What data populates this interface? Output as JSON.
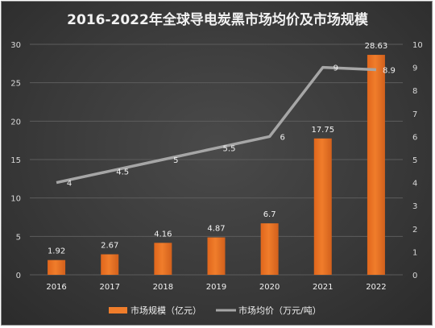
{
  "chart_data": {
    "type": "bar",
    "title": "2016-2022年全球导电炭黑市场均价及市场规模",
    "categories": [
      "2016",
      "2017",
      "2018",
      "2019",
      "2020",
      "2021",
      "2022"
    ],
    "series": [
      {
        "name": "市场规模（亿元）",
        "type": "bar",
        "axis": "left",
        "values": [
          1.92,
          2.67,
          4.16,
          4.87,
          6.7,
          17.75,
          28.63
        ],
        "labels": [
          "1.92",
          "2.67",
          "4.16",
          "4.87",
          "6.7",
          "17.75",
          "28.63"
        ],
        "color": "#f07d2b"
      },
      {
        "name": "市场均价（万元/吨）",
        "type": "line",
        "axis": "right",
        "values": [
          4,
          4.5,
          5,
          5.5,
          6,
          9,
          8.9
        ],
        "labels": [
          "4",
          "4.5",
          "5",
          "5.5",
          "6",
          "9",
          "8.9"
        ],
        "color": "#a6a6a6"
      }
    ],
    "y_left": {
      "min": 0,
      "max": 30,
      "step": 5,
      "ticks": [
        "0",
        "5",
        "10",
        "15",
        "20",
        "25",
        "30"
      ]
    },
    "y_right": {
      "min": 0,
      "max": 10,
      "step": 1,
      "ticks": [
        "0",
        "1",
        "2",
        "3",
        "4",
        "5",
        "6",
        "7",
        "8",
        "9",
        "10"
      ]
    },
    "grid": true,
    "legend_position": "bottom"
  }
}
